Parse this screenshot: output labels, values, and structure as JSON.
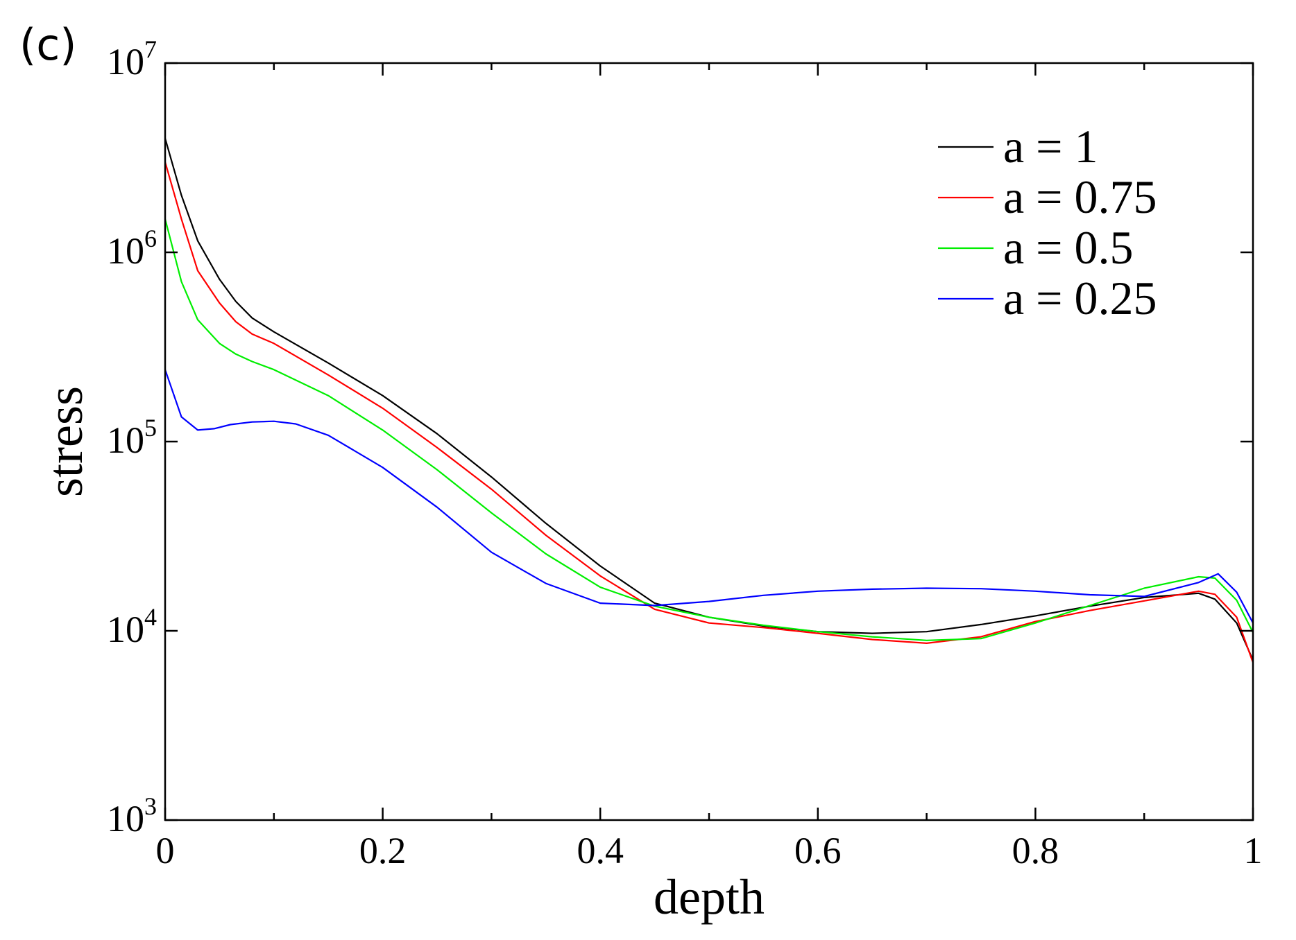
{
  "panel_label": "(c)",
  "chart_data": {
    "type": "line",
    "title": "",
    "xlabel": "depth",
    "ylabel": "stress",
    "xlim": [
      0,
      1
    ],
    "ylim": [
      1000,
      10000000
    ],
    "yscale": "log",
    "grid": false,
    "legend_position": "top-right",
    "x_ticks": [
      {
        "value": 0,
        "label": "0"
      },
      {
        "value": 0.2,
        "label": "0.2"
      },
      {
        "value": 0.4,
        "label": "0.4"
      },
      {
        "value": 0.6,
        "label": "0.6"
      },
      {
        "value": 0.8,
        "label": "0.8"
      },
      {
        "value": 1,
        "label": "1"
      }
    ],
    "y_ticks": [
      {
        "value": 1000,
        "base": "10",
        "exp": "3"
      },
      {
        "value": 10000,
        "base": "10",
        "exp": "4"
      },
      {
        "value": 100000,
        "base": "10",
        "exp": "5"
      },
      {
        "value": 1000000,
        "base": "10",
        "exp": "6"
      },
      {
        "value": 10000000,
        "base": "10",
        "exp": "7"
      }
    ],
    "series": [
      {
        "name": "a = 1",
        "color": "#000000",
        "x": [
          0,
          0.015,
          0.03,
          0.05,
          0.065,
          0.08,
          0.1,
          0.15,
          0.2,
          0.25,
          0.3,
          0.35,
          0.4,
          0.45,
          0.5,
          0.55,
          0.6,
          0.65,
          0.7,
          0.75,
          0.8,
          0.85,
          0.9,
          0.95,
          0.965,
          0.985,
          1
        ],
        "y": [
          4000000,
          2000000,
          1150000,
          720000,
          550000,
          450000,
          380000,
          260000,
          175000,
          110000,
          65000,
          37000,
          22000,
          14000,
          11800,
          10600,
          9900,
          9700,
          9900,
          10800,
          12000,
          13500,
          15000,
          15800,
          14700,
          11000,
          7000
        ]
      },
      {
        "name": "a = 0.75",
        "color": "#ff0000",
        "x": [
          0,
          0.015,
          0.03,
          0.05,
          0.065,
          0.08,
          0.1,
          0.15,
          0.2,
          0.25,
          0.3,
          0.35,
          0.4,
          0.45,
          0.5,
          0.55,
          0.6,
          0.65,
          0.7,
          0.75,
          0.8,
          0.85,
          0.9,
          0.95,
          0.965,
          0.985,
          1
        ],
        "y": [
          3000000,
          1500000,
          800000,
          540000,
          430000,
          370000,
          330000,
          225000,
          150000,
          93000,
          56000,
          32000,
          19500,
          13000,
          11000,
          10400,
          9700,
          9000,
          8600,
          9300,
          11200,
          12800,
          14400,
          16200,
          15600,
          11800,
          6800
        ]
      },
      {
        "name": "a = 0.5",
        "color": "#00ee00",
        "x": [
          0,
          0.015,
          0.03,
          0.05,
          0.065,
          0.08,
          0.1,
          0.15,
          0.2,
          0.25,
          0.3,
          0.35,
          0.4,
          0.45,
          0.5,
          0.55,
          0.6,
          0.65,
          0.7,
          0.75,
          0.8,
          0.85,
          0.9,
          0.95,
          0.965,
          0.985,
          1
        ],
        "y": [
          1500000,
          700000,
          440000,
          330000,
          290000,
          265000,
          240000,
          175000,
          115000,
          71000,
          42000,
          25500,
          17000,
          13500,
          11800,
          10700,
          9900,
          9300,
          8900,
          9100,
          11000,
          13600,
          16800,
          19300,
          19000,
          14500,
          9800
        ]
      },
      {
        "name": "a = 0.25",
        "color": "#0000ff",
        "x": [
          0,
          0.015,
          0.03,
          0.045,
          0.06,
          0.08,
          0.1,
          0.12,
          0.15,
          0.2,
          0.25,
          0.3,
          0.35,
          0.4,
          0.45,
          0.5,
          0.55,
          0.6,
          0.65,
          0.7,
          0.75,
          0.8,
          0.85,
          0.9,
          0.95,
          0.968,
          0.985,
          1
        ],
        "y": [
          240000,
          135000,
          115000,
          117000,
          123000,
          127000,
          128000,
          124000,
          108000,
          73000,
          45000,
          26000,
          17800,
          14000,
          13600,
          14300,
          15400,
          16200,
          16600,
          16800,
          16700,
          16200,
          15500,
          15200,
          18000,
          20000,
          16000,
          11000
        ]
      }
    ]
  }
}
